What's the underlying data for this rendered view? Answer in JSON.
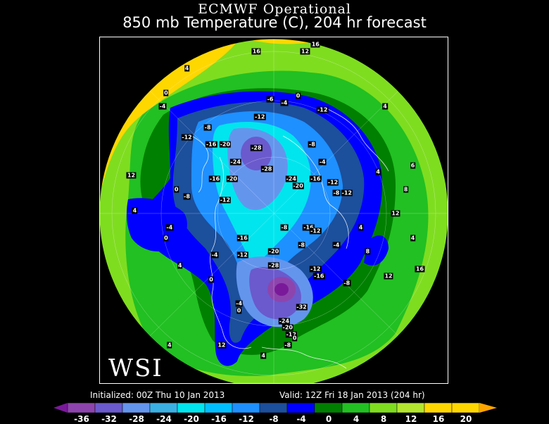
{
  "header": {
    "title": "ECMWF Operational",
    "subtitle": "850 mb Temperature (C), 204 hr forecast"
  },
  "logo": "WSI",
  "footer": {
    "initialized": "Initialized: 00Z Thu 10 Jan 2013",
    "valid": "Valid: 12Z Fri 18 Jan 2013 (204 hr)"
  },
  "colorbar": {
    "bins": [
      {
        "color": "#7a1a9a"
      },
      {
        "color": "#8e44ad"
      },
      {
        "color": "#6a5acd"
      },
      {
        "color": "#6495ed"
      },
      {
        "color": "#3ab0e2"
      },
      {
        "color": "#00e5ee"
      },
      {
        "color": "#00bfff"
      },
      {
        "color": "#1e90ff"
      },
      {
        "color": "#1c4f9c"
      },
      {
        "color": "#0000ff"
      },
      {
        "color": "#008000"
      },
      {
        "color": "#22c022"
      },
      {
        "color": "#7fdd20"
      },
      {
        "color": "#b3e62e"
      },
      {
        "color": "#ffd700"
      },
      {
        "color": "#ffa500"
      }
    ],
    "ticks": [
      "-36",
      "-32",
      "-28",
      "-24",
      "-20",
      "-16",
      "-12",
      "-8",
      "-4",
      "0",
      "4",
      "8",
      "12",
      "16",
      "20"
    ]
  },
  "map_labels": [
    {
      "text": "16",
      "lx": 0.45,
      "ly": 0.04
    },
    {
      "text": "12",
      "lx": 0.59,
      "ly": 0.04
    },
    {
      "text": "16",
      "lx": 0.62,
      "ly": 0.02
    },
    {
      "text": "4",
      "lx": 0.25,
      "ly": 0.09
    },
    {
      "text": "0",
      "lx": 0.19,
      "ly": 0.16
    },
    {
      "text": "-4",
      "lx": 0.18,
      "ly": 0.2
    },
    {
      "text": "-6",
      "lx": 0.49,
      "ly": 0.18
    },
    {
      "text": "-4",
      "lx": 0.53,
      "ly": 0.19
    },
    {
      "text": "-12",
      "lx": 0.46,
      "ly": 0.23
    },
    {
      "text": "-12",
      "lx": 0.64,
      "ly": 0.21
    },
    {
      "text": "-8",
      "lx": 0.31,
      "ly": 0.26
    },
    {
      "text": "-12",
      "lx": 0.25,
      "ly": 0.29
    },
    {
      "text": "-16",
      "lx": 0.32,
      "ly": 0.31
    },
    {
      "text": "-20",
      "lx": 0.36,
      "ly": 0.31
    },
    {
      "text": "-28",
      "lx": 0.45,
      "ly": 0.32
    },
    {
      "text": "-8",
      "lx": 0.61,
      "ly": 0.31
    },
    {
      "text": "-24",
      "lx": 0.39,
      "ly": 0.36
    },
    {
      "text": "-28",
      "lx": 0.48,
      "ly": 0.38
    },
    {
      "text": "-4",
      "lx": 0.64,
      "ly": 0.36
    },
    {
      "text": "-16",
      "lx": 0.33,
      "ly": 0.41
    },
    {
      "text": "-20",
      "lx": 0.38,
      "ly": 0.41
    },
    {
      "text": "-24",
      "lx": 0.55,
      "ly": 0.41
    },
    {
      "text": "-20",
      "lx": 0.57,
      "ly": 0.43
    },
    {
      "text": "-16",
      "lx": 0.62,
      "ly": 0.41
    },
    {
      "text": "-12",
      "lx": 0.67,
      "ly": 0.42
    },
    {
      "text": "-8",
      "lx": 0.25,
      "ly": 0.46
    },
    {
      "text": "-12",
      "lx": 0.36,
      "ly": 0.47
    },
    {
      "text": "-8",
      "lx": 0.68,
      "ly": 0.45
    },
    {
      "text": "-12",
      "lx": 0.71,
      "ly": 0.45
    },
    {
      "text": "-4",
      "lx": 0.2,
      "ly": 0.55
    },
    {
      "text": "-8",
      "lx": 0.53,
      "ly": 0.55
    },
    {
      "text": "-16",
      "lx": 0.6,
      "ly": 0.55
    },
    {
      "text": "-12",
      "lx": 0.62,
      "ly": 0.56
    },
    {
      "text": "-16",
      "lx": 0.41,
      "ly": 0.58
    },
    {
      "text": "-8",
      "lx": 0.58,
      "ly": 0.6
    },
    {
      "text": "-4",
      "lx": 0.68,
      "ly": 0.6
    },
    {
      "text": "-4",
      "lx": 0.33,
      "ly": 0.63
    },
    {
      "text": "-12",
      "lx": 0.41,
      "ly": 0.63
    },
    {
      "text": "-20",
      "lx": 0.5,
      "ly": 0.62
    },
    {
      "text": "-28",
      "lx": 0.5,
      "ly": 0.66
    },
    {
      "text": "-12",
      "lx": 0.62,
      "ly": 0.67
    },
    {
      "text": "-16",
      "lx": 0.63,
      "ly": 0.69
    },
    {
      "text": "-8",
      "lx": 0.71,
      "ly": 0.71
    },
    {
      "text": "-32",
      "lx": 0.58,
      "ly": 0.78
    },
    {
      "text": "-24",
      "lx": 0.53,
      "ly": 0.82
    },
    {
      "text": "-20",
      "lx": 0.54,
      "ly": 0.84
    },
    {
      "text": "-12",
      "lx": 0.55,
      "ly": 0.86
    },
    {
      "text": "-4",
      "lx": 0.4,
      "ly": 0.77
    },
    {
      "text": "0",
      "lx": 0.4,
      "ly": 0.79
    },
    {
      "text": "12",
      "lx": 0.85,
      "ly": 0.51
    },
    {
      "text": "-8",
      "lx": 0.54,
      "ly": 0.89
    },
    {
      "text": "0",
      "lx": 0.56,
      "ly": 0.87
    },
    {
      "text": "12",
      "lx": 0.35,
      "ly": 0.89
    },
    {
      "text": "4",
      "lx": 0.47,
      "ly": 0.92
    },
    {
      "text": "12",
      "lx": 0.09,
      "ly": 0.4
    },
    {
      "text": "4",
      "lx": 0.1,
      "ly": 0.5
    },
    {
      "text": "0",
      "lx": 0.22,
      "ly": 0.44
    },
    {
      "text": "0",
      "lx": 0.19,
      "ly": 0.58
    },
    {
      "text": "0",
      "lx": 0.32,
      "ly": 0.7
    },
    {
      "text": "4",
      "lx": 0.23,
      "ly": 0.66
    },
    {
      "text": "4",
      "lx": 0.75,
      "ly": 0.55
    },
    {
      "text": "8",
      "lx": 0.88,
      "ly": 0.44
    },
    {
      "text": "4",
      "lx": 0.8,
      "ly": 0.39
    },
    {
      "text": "4",
      "lx": 0.9,
      "ly": 0.58
    },
    {
      "text": "12",
      "lx": 0.83,
      "ly": 0.69
    },
    {
      "text": "16",
      "lx": 0.92,
      "ly": 0.67
    },
    {
      "text": "8",
      "lx": 0.77,
      "ly": 0.62
    },
    {
      "text": "6",
      "lx": 0.9,
      "ly": 0.37
    },
    {
      "text": "4",
      "lx": 0.82,
      "ly": 0.2
    },
    {
      "text": "0",
      "lx": 0.57,
      "ly": 0.17
    },
    {
      "text": "4",
      "lx": 0.2,
      "ly": 0.89
    }
  ]
}
